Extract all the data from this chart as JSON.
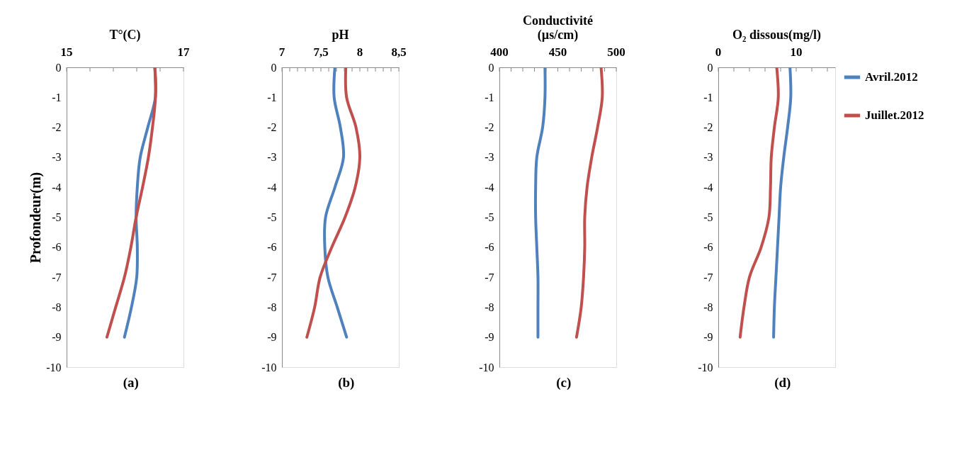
{
  "chart_data": [
    {
      "type": "line",
      "orientation": "horizontal",
      "title": "T°(C)",
      "ylabel": "Profondeur(m)",
      "annotations": [
        "(a)"
      ],
      "xlim": [
        15,
        17
      ],
      "xticks": [
        15,
        {
          "value": 15.4,
          "label": null
        },
        {
          "value": 15.8,
          "label": null
        },
        {
          "value": 16.2,
          "label": null
        },
        {
          "value": 16.6,
          "label": null
        },
        17
      ],
      "ylim": [
        -10,
        0
      ],
      "yticks": [
        0,
        -1,
        -2,
        -3,
        -4,
        -5,
        -6,
        -7,
        -8,
        -9,
        -10
      ],
      "grid": false,
      "series": [
        {
          "color": "#4f81bd",
          "values": [
            16.51,
            16.52,
            16.39,
            16.26,
            16.21,
            16.19,
            16.21,
            16.2,
            16.11,
            15.99
          ],
          "x": [
            0,
            -1,
            -2,
            -3,
            -4,
            -5,
            -6,
            -7,
            -8,
            -9
          ]
        },
        {
          "color": "#c0504d",
          "values": [
            16.51,
            16.52,
            16.47,
            16.4,
            16.3,
            16.19,
            16.1,
            15.99,
            15.84,
            15.69
          ],
          "x": [
            0,
            -1,
            -2,
            -3,
            -4,
            -5,
            -6,
            -7,
            -8,
            -9
          ]
        }
      ]
    },
    {
      "type": "line",
      "orientation": "horizontal",
      "title": "pH",
      "annotations": [
        "(b)"
      ],
      "xlim": [
        7,
        8.5
      ],
      "xticks": [
        7,
        {
          "value": 7.1,
          "label": null
        },
        {
          "value": 7.2,
          "label": null
        },
        {
          "value": 7.3,
          "label": null
        },
        {
          "value": 7.4,
          "label": null
        },
        {
          "value": 7.5,
          "label": "7,5"
        },
        {
          "value": 7.6,
          "label": null
        },
        {
          "value": 7.7,
          "label": null
        },
        {
          "value": 7.8,
          "label": null
        },
        {
          "value": 7.9,
          "label": null
        },
        8,
        {
          "value": 8.1,
          "label": null
        },
        {
          "value": 8.2,
          "label": null
        },
        {
          "value": 8.3,
          "label": null
        },
        {
          "value": 8.4,
          "label": null
        },
        {
          "value": 8.5,
          "label": "8,5"
        }
      ],
      "ylim": [
        -10,
        0
      ],
      "yticks": [
        0,
        -1,
        -2,
        -3,
        -4,
        -5,
        -6,
        -7,
        -8,
        -9,
        -10
      ],
      "grid": false,
      "series": [
        {
          "color": "#4f81bd",
          "values": [
            7.68,
            7.67,
            7.75,
            7.79,
            7.68,
            7.56,
            7.55,
            7.59,
            7.71,
            7.83
          ],
          "x": [
            0,
            -1,
            -2,
            -3,
            -4,
            -5,
            -6,
            -7,
            -8,
            -9
          ]
        },
        {
          "color": "#c0504d",
          "values": [
            7.82,
            7.83,
            7.95,
            8.0,
            7.94,
            7.81,
            7.64,
            7.49,
            7.42,
            7.32
          ],
          "x": [
            0,
            -1,
            -2,
            -3,
            -4,
            -5,
            -6,
            -7,
            -8,
            -9
          ]
        }
      ]
    },
    {
      "type": "line",
      "orientation": "horizontal",
      "title": "Conductivité\n(µs/cm)",
      "annotations": [
        "(c)"
      ],
      "xlim": [
        400,
        500
      ],
      "xticks": [
        400,
        {
          "value": 410,
          "label": null
        },
        {
          "value": 420,
          "label": null
        },
        {
          "value": 430,
          "label": null
        },
        {
          "value": 440,
          "label": null
        },
        450,
        {
          "value": 460,
          "label": null
        },
        {
          "value": 470,
          "label": null
        },
        {
          "value": 480,
          "label": null
        },
        {
          "value": 490,
          "label": null
        },
        500
      ],
      "ylim": [
        -10,
        0
      ],
      "yticks": [
        0,
        -1,
        -2,
        -3,
        -4,
        -5,
        -6,
        -7,
        -8,
        -9,
        -10
      ],
      "grid": false,
      "series": [
        {
          "color": "#4f81bd",
          "values": [
            439,
            439,
            437,
            432,
            431,
            431,
            432,
            433,
            433,
            433
          ],
          "x": [
            0,
            -1,
            -2,
            -3,
            -4,
            -5,
            -6,
            -7,
            -8,
            -9
          ]
        },
        {
          "color": "#c0504d",
          "values": [
            487,
            488,
            484,
            479,
            475,
            473,
            473,
            472,
            470,
            466
          ],
          "x": [
            0,
            -1,
            -2,
            -3,
            -4,
            -5,
            -6,
            -7,
            -8,
            -9
          ]
        }
      ]
    },
    {
      "type": "line",
      "orientation": "horizontal",
      "title": "O₂ dissous(mg/l)",
      "annotations": [
        "(d)"
      ],
      "xlim": [
        0,
        15
      ],
      "xticks": [
        0,
        {
          "value": 2,
          "label": null
        },
        {
          "value": 4,
          "label": null
        },
        {
          "value": 6,
          "label": null
        },
        {
          "value": 8,
          "label": null
        },
        10,
        {
          "value": 12,
          "label": null
        },
        {
          "value": 14,
          "label": null
        }
      ],
      "ylim": [
        -10,
        0
      ],
      "yticks": [
        0,
        -1,
        -2,
        -3,
        -4,
        -5,
        -6,
        -7,
        -8,
        -9,
        -10
      ],
      "grid": false,
      "legend": "right",
      "series": [
        {
          "name": "Avril.2012",
          "color": "#4f81bd",
          "values": [
            9.2,
            9.3,
            8.9,
            8.4,
            8.0,
            7.8,
            7.6,
            7.4,
            7.2,
            7.1
          ],
          "x": [
            0,
            -1,
            -2,
            -3,
            -4,
            -5,
            -6,
            -7,
            -8,
            -9
          ]
        },
        {
          "name": "Juillet.2012",
          "color": "#c0504d",
          "values": [
            7.5,
            7.7,
            7.2,
            6.8,
            6.7,
            6.5,
            5.5,
            4.0,
            3.3,
            2.8
          ],
          "x": [
            0,
            -1,
            -2,
            -3,
            -4,
            -5,
            -6,
            -7,
            -8,
            -9
          ]
        }
      ]
    }
  ]
}
